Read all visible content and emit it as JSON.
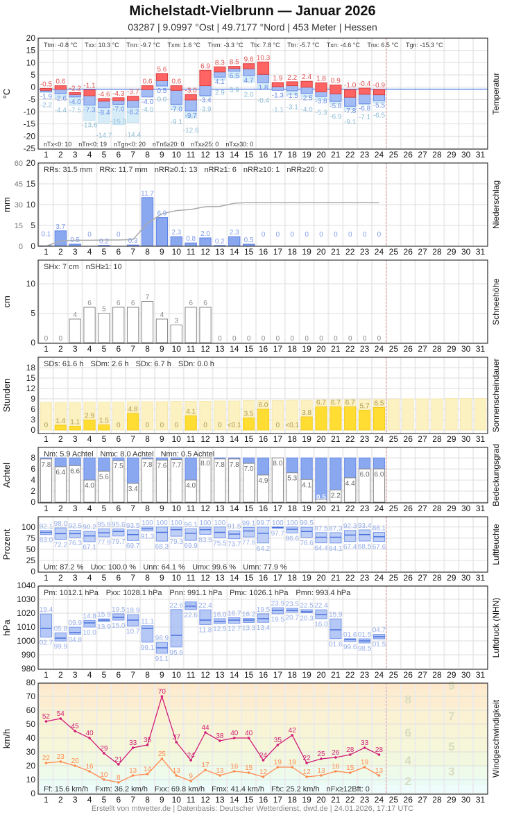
{
  "header": {
    "title": "Michelstadt-Vielbrunn  —  Januar 2026",
    "subtitle": "03287  |  9.0997 °Ost  |  49.7177 °Nord  |  453 Meter  |  Hessen"
  },
  "footer": "Erstellt von mtwetter.de | Datenbasis: Deutscher Wetterdienst, dwd.de | 24.01.2026, 17:17 UTC",
  "days": [
    1,
    2,
    3,
    4,
    5,
    6,
    7,
    8,
    9,
    10,
    11,
    12,
    13,
    14,
    15,
    16,
    17,
    18,
    19,
    20,
    21,
    22,
    23,
    24,
    25,
    26,
    27,
    28,
    29,
    30,
    31
  ],
  "colors": {
    "tmax": "#ff6464",
    "tmean": "#a4bcf4",
    "tground": "#d6edf8",
    "precip": "#8aa8f0",
    "sun": "#ffdd33",
    "sun_possible": "#fcf1c0",
    "cloud_clear": "#8aa8f0",
    "humidity": "#b4c8f6",
    "pressure": "#a8bef4",
    "gust": "#d01c78",
    "wind": "#ff8a50",
    "today_line": "#e89a9a"
  },
  "chart_data": [
    {
      "type": "bar",
      "panel": "temperature",
      "ylabel": "°C",
      "side_label": "Temperatur",
      "ylim": [
        -25,
        20
      ],
      "yticks": [
        20,
        15,
        10,
        5,
        0,
        -5,
        -10,
        -15,
        -20,
        -25
      ],
      "stats_top": [
        "Ttm: -0.8 °C",
        "Txx: 10.3 °C",
        "Tnn: -9.7 °C",
        "Txm: 1.6 °C",
        "Tnm: -3.3 °C",
        "Ttx: 7.8 °C",
        "Ttn: -5.7 °C",
        "Txn: -4.6 °C",
        "Tnx: 6.5 °C",
        "Tgn: -15.3 °C"
      ],
      "stats_bottom": [
        "nTx<0: 10",
        "nTn<0: 19",
        "nTgn<0: 20",
        "nTn6≥20: 0",
        "nTx≥25: 0",
        "nTx≥30: 0"
      ],
      "tmax": [
        -0.5,
        0.6,
        -2.2,
        -1.1,
        -4.6,
        -4.3,
        -3.7,
        0.6,
        5.6,
        0.6,
        -3.0,
        6.9,
        8.3,
        8.5,
        9.6,
        10.3,
        1.9,
        2.2,
        2.4,
        1.8,
        0.9,
        -1.0,
        -0.4,
        -0.9
      ],
      "tmean": [
        -1.3,
        -0.9,
        -3.0,
        -3.5,
        -5.7,
        -5.5,
        -5.4,
        -1.0,
        2.6,
        -1.3,
        -5.2,
        0.6,
        6.2,
        7.6,
        7.5,
        5.2,
        0.2,
        0.6,
        0.0,
        -1.9,
        -2.7,
        -4.1,
        -2.9,
        -3.1
      ],
      "tmin": [
        -1.9,
        -2.6,
        -4.0,
        -7.3,
        -8.4,
        -7.0,
        -8.2,
        -4.0,
        0.5,
        -7.0,
        -9.7,
        -3.4,
        4.1,
        6.5,
        4.7,
        1.8,
        -1.3,
        -1.5,
        -2.5,
        -3.8,
        -5.8,
        -7.8,
        -6.8,
        -5.5
      ],
      "tground_min": [
        -2.2,
        -4.4,
        -7.5,
        -13.6,
        -14.7,
        -15.3,
        -14.4,
        -4.0,
        0.0,
        -9.1,
        -12.6,
        -3.9,
        2.9,
        3.9,
        2.0,
        -0.4,
        -1.1,
        -3.1,
        -4.0,
        -5.3,
        -6.9,
        -9.1,
        -7.1,
        -6.5
      ],
      "reference_line": -0.8
    },
    {
      "type": "bar",
      "panel": "precipitation",
      "ylabel": "mm",
      "side_label": "Niederschlag",
      "ylim": [
        0,
        20
      ],
      "yticks": [
        20,
        15,
        10,
        5,
        0
      ],
      "y2lim": [
        0,
        60
      ],
      "y2ticks": [
        60,
        45,
        30,
        15,
        0
      ],
      "stats_top": [
        "RRs: 31.5 mm",
        "RRx: 11.7 mm",
        "nRR≥0.1: 13",
        "nRR≥1: 6",
        "nRR≥10: 1",
        "nRR≥20: 0"
      ],
      "values": [
        0.1,
        3.7,
        0.5,
        0,
        0.2,
        0,
        0.3,
        11.7,
        6.9,
        2.3,
        0.8,
        2.0,
        0.2,
        2.3,
        0.5,
        0,
        0,
        0,
        0,
        0,
        0,
        0,
        0,
        0
      ],
      "cumulative_line": true
    },
    {
      "type": "bar",
      "panel": "snow",
      "ylabel": "cm",
      "side_label": "Schneehöhe",
      "ylim": [
        0,
        14
      ],
      "yticks": [
        10,
        5,
        0
      ],
      "stats_top": [
        "SHx: 7 cm",
        "nSH≥1: 10"
      ],
      "values": [
        0,
        0,
        4,
        6,
        5,
        6,
        6,
        7,
        4,
        3,
        6,
        6,
        0,
        0,
        0,
        0,
        0,
        0,
        0,
        0,
        0,
        0,
        0,
        0
      ]
    },
    {
      "type": "bar",
      "panel": "sunshine",
      "ylabel": "Stunden",
      "side_label": "Sonnenscheindauer",
      "ylim": [
        0,
        21
      ],
      "yticks": [
        18,
        15,
        12,
        9,
        6,
        3,
        0
      ],
      "stats_top": [
        "SDs: 61.6 h",
        "SDm: 2.6 h",
        "SDx: 6.7 h",
        "SDn: 0.0 h"
      ],
      "labels": [
        "0",
        "1.4",
        "1.1",
        "2.9",
        "1.5",
        "0",
        "4.8",
        "0",
        "0",
        "0",
        "4.1",
        "0",
        "0",
        "<0.1",
        "3.5",
        "6.0",
        "0",
        "<0.1",
        "3.8",
        "6.7",
        "6.7",
        "6.7",
        "5.7",
        "6.5"
      ],
      "values": [
        0,
        1.4,
        1.1,
        2.9,
        1.5,
        0,
        4.8,
        0,
        0,
        0,
        4.1,
        0,
        0,
        0.05,
        3.5,
        6.0,
        0,
        0.05,
        3.8,
        6.7,
        6.7,
        6.7,
        5.7,
        6.5
      ],
      "possible": [
        8.0,
        8.0,
        8.0,
        8.1,
        8.1,
        8.1,
        8.2,
        8.2,
        8.2,
        8.3,
        8.3,
        8.3,
        8.4,
        8.4,
        8.5,
        8.5,
        8.5,
        8.6,
        8.6,
        8.7,
        8.7,
        8.8,
        8.8,
        8.9,
        8.9,
        9.0,
        9.0,
        9.0,
        9.1,
        9.1,
        9.1
      ]
    },
    {
      "type": "bar",
      "panel": "cloud_cover",
      "ylabel": "Achtel",
      "side_label": "Bedeckungsgrad",
      "ylim": [
        0,
        9.9
      ],
      "yticks": [
        8,
        6,
        4,
        2,
        0
      ],
      "stats_top": [
        "Nm: 5.9 Achtel",
        "Nmx: 8.0 Achtel",
        "Nmn: 0.5 Achtel"
      ],
      "values": [
        7.8,
        6.4,
        6.6,
        4.0,
        5.6,
        7.5,
        3.4,
        7.8,
        7.6,
        7.7,
        4.0,
        8.0,
        7.8,
        7.8,
        7.0,
        4.9,
        8.0,
        5.3,
        4.1,
        0.5,
        2.2,
        4.4,
        6.0,
        6.0
      ]
    },
    {
      "type": "bar",
      "panel": "humidity",
      "ylabel": "Prozent",
      "side_label": "Luftfeuchte",
      "ylim": [
        0,
        123
      ],
      "yticks": [
        100,
        75,
        50,
        25,
        0
      ],
      "stats_top": [
        "Um: 87.2 %",
        "Uxx: 100.0 %",
        "Unn: 64.1 %",
        "Umx: 99.6 %",
        "Umn: 77.9 %"
      ],
      "max": [
        92.1,
        98.0,
        92.5,
        90.2,
        95.8,
        95.6,
        93.5,
        100,
        100,
        100,
        96.1,
        100,
        100,
        91.5,
        99.1,
        99.7,
        100,
        100,
        99.5,
        87.5,
        87.3,
        92.3,
        93.4,
        88.1
      ],
      "mean": [
        88,
        85,
        85,
        80,
        87,
        90,
        83,
        96,
        88,
        94,
        86,
        94,
        88,
        84,
        91,
        86,
        99,
        95,
        90,
        77,
        77,
        82,
        83,
        78
      ],
      "min": [
        83.0,
        72.2,
        76.3,
        67.1,
        77.9,
        79.7,
        69.7,
        91.3,
        68.3,
        79.3,
        69.9,
        83.5,
        75.5,
        73.7,
        77.6,
        64.2,
        97.7,
        86.6,
        76.6,
        64.4,
        64.1,
        67.4,
        68.5,
        67.6
      ]
    },
    {
      "type": "bar",
      "panel": "pressure",
      "ylabel": "hPa",
      "side_label": "Luftdruck (NHN)",
      "ylim": [
        980,
        1040
      ],
      "yticks": [
        1040,
        1030,
        1020,
        1010,
        1000,
        990,
        980
      ],
      "stats_top": [
        "Pm: 1012.1 hPa",
        "Pxx: 1028.1 hPa",
        "Pnn: 991.1 hPa",
        "Pmx: 1026.1 hPa",
        "Pmn: 993.4 hPa"
      ],
      "max": [
        1019.4,
        1005.8,
        1009.9,
        1014.8,
        1015.9,
        1019.5,
        1018.9,
        1011.1,
        998.9,
        1022.6,
        1028.1,
        1022.4,
        1016.0,
        1016.7,
        1016.2,
        1019.5,
        1023.9,
        1023.5,
        1022.5,
        1022.4,
        1015.9,
        1001.6,
        1001.5,
        1004.7
      ],
      "mean": [
        1009,
        1002,
        1006,
        1013,
        1015,
        1017,
        1015,
        1009,
        995,
        1004,
        1025,
        1015,
        1014,
        1015,
        1015,
        1016,
        1022,
        1022,
        1021,
        1019,
        1008,
        1001,
        1000,
        1003
      ],
      "min": [
        1002.7,
        999.9,
        1004.8,
        1010.0,
        1013.9,
        1015.0,
        1010.7,
        999.1,
        991.1,
        995.6,
        1022.6,
        1011.8,
        1012.5,
        1012.7,
        1013.3,
        1013.4,
        1019.5,
        1020.7,
        1020.3,
        1016.0,
        1001.6,
        999.6,
        998.5,
        1001.5
      ]
    },
    {
      "type": "line",
      "panel": "wind",
      "ylabel": "km/h",
      "side_label": "Windgeschwindigkeit",
      "ylim": [
        0,
        80
      ],
      "yticks": [
        80,
        70,
        60,
        50,
        40,
        30,
        20,
        10,
        0
      ],
      "stats_top": [
        "Ff: 15.6 km/h",
        "Fxm: 36.2 km/h",
        "Fxx: 69.8 km/h",
        "Fmx: 41.4 km/h",
        "Ffx: 25.2 km/h",
        "nFx≥12Bft: 0"
      ],
      "beaufort_labels": [
        2,
        3,
        4,
        5,
        6,
        7,
        8,
        9
      ],
      "series": [
        {
          "key": "gust",
          "values": [
            52,
            54,
            45,
            40,
            29,
            21,
            33,
            35,
            70,
            37,
            24,
            44,
            38,
            40,
            40,
            24,
            35,
            42,
            22,
            25,
            26,
            28,
            33,
            28
          ]
        },
        {
          "key": "mean",
          "values": [
            22,
            23,
            20,
            16,
            10,
            8,
            13,
            14,
            25,
            13,
            9,
            17,
            13,
            16,
            15,
            12,
            19,
            19,
            12,
            13,
            16,
            15,
            19,
            13
          ]
        }
      ]
    }
  ]
}
